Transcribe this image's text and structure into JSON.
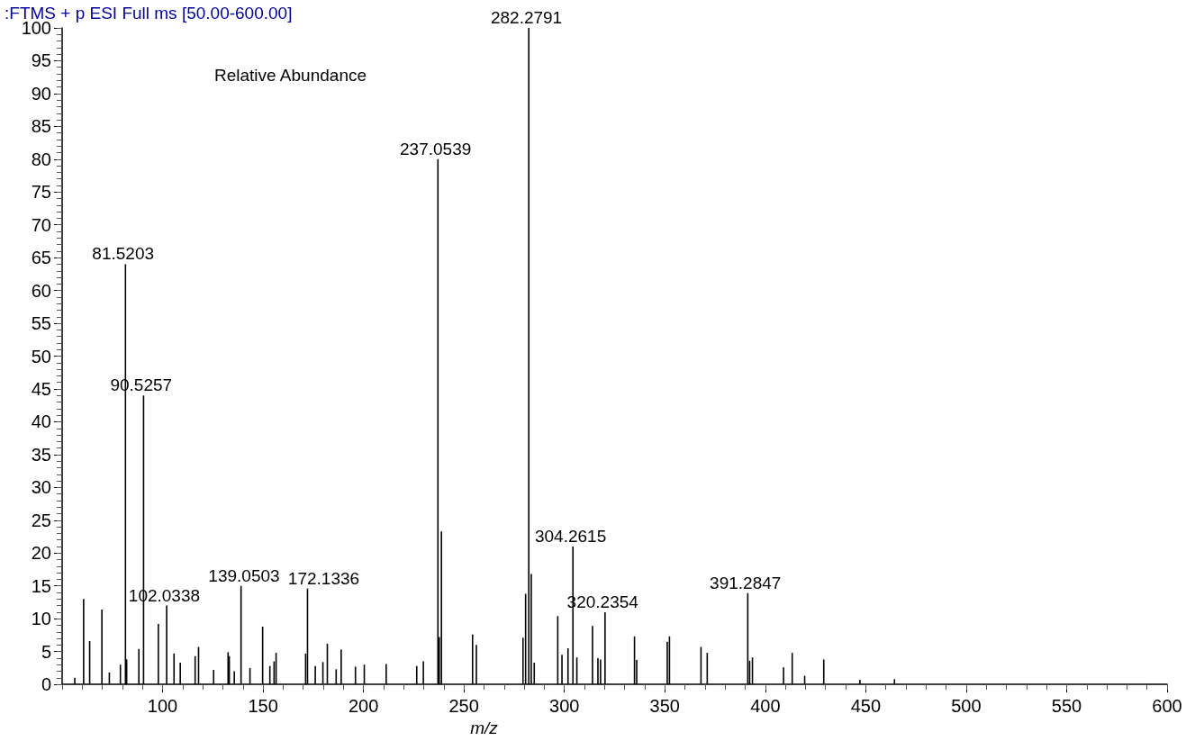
{
  "chart_data": {
    "type": "bar",
    "title": ":FTMS + p ESI Full ms [50.00-600.00]",
    "xlabel": "m/z",
    "ylabel": "Relative Abundance",
    "color": "#000000",
    "x": [
      56.3,
      60.7,
      63.7,
      69.8,
      73.5,
      79,
      81.5203,
      82.1,
      88.2,
      90.5257,
      97.9,
      102.0338,
      105.7,
      108.8,
      116.2,
      117.9,
      125.4,
      132.6,
      133.2,
      135.7,
      139.0503,
      143.5,
      149.8,
      153.4,
      155.5,
      156.5,
      171.2,
      172.1336,
      176,
      179.8,
      182,
      186.4,
      188.9,
      196,
      200.4,
      211.3,
      226.5,
      229.8,
      237.0539,
      237.7,
      238.8,
      254.3,
      256.2,
      279.4,
      280.7,
      282.2791,
      283.5,
      285,
      296.7,
      298.8,
      301.8,
      304.2615,
      306.2,
      314,
      316.7,
      318,
      320.2354,
      334.9,
      336,
      351.2,
      352.3,
      368,
      371.1,
      391.2847,
      392.2,
      393.6,
      409.1,
      413.4,
      419.6,
      429.1,
      447.1,
      464.3
    ],
    "values": [
      1,
      13,
      6.6,
      11.4,
      1.8,
      3,
      64,
      3.8,
      5.4,
      44,
      9.2,
      12,
      4.7,
      3.3,
      4.3,
      5.7,
      2.2,
      4.9,
      4.3,
      2,
      15,
      2.5,
      8.8,
      2.8,
      3.5,
      4.8,
      4.7,
      14.6,
      2.8,
      3.4,
      6.2,
      2.3,
      5.3,
      2.7,
      3,
      3.1,
      2.8,
      3.5,
      80,
      7.2,
      23.3,
      7.6,
      6,
      7.1,
      13.8,
      100,
      16.8,
      3.3,
      10.4,
      4.5,
      5.5,
      21,
      4.1,
      8.9,
      4,
      3.8,
      11,
      7.3,
      3.7,
      6.5,
      7.3,
      5.7,
      4.8,
      13.9,
      3.6,
      4.1,
      2.6,
      4.8,
      1.3,
      3.8,
      0.7,
      0.8
    ],
    "xlim": [
      50,
      600
    ],
    "xticks": [
      100,
      150,
      200,
      250,
      300,
      350,
      400,
      450,
      500,
      550,
      600
    ],
    "ylim": [
      0,
      100
    ],
    "yticks": [
      0,
      5,
      10,
      15,
      20,
      25,
      30,
      35,
      40,
      45,
      50,
      55,
      60,
      65,
      70,
      75,
      80,
      85,
      90,
      95,
      100
    ],
    "grid": false,
    "annotations": [
      {
        "text": "81.5203",
        "x": 81.5203,
        "y": 64
      },
      {
        "text": "90.5257",
        "x": 90.5257,
        "y": 44
      },
      {
        "text": "102.0338",
        "x": 102.0338,
        "y": 12
      },
      {
        "text": "139.0503",
        "x": 139.0503,
        "y": 15
      },
      {
        "text": "172.1336",
        "x": 172.1336,
        "y": 14.6
      },
      {
        "text": "237.0539",
        "x": 237.0539,
        "y": 80
      },
      {
        "text": "282.2791",
        "x": 282.2791,
        "y": 100
      },
      {
        "text": "304.2615",
        "x": 304.2615,
        "y": 21
      },
      {
        "text": "320.2354",
        "x": 320.2354,
        "y": 11
      },
      {
        "text": "391.2847",
        "x": 391.2847,
        "y": 13.9
      }
    ]
  }
}
